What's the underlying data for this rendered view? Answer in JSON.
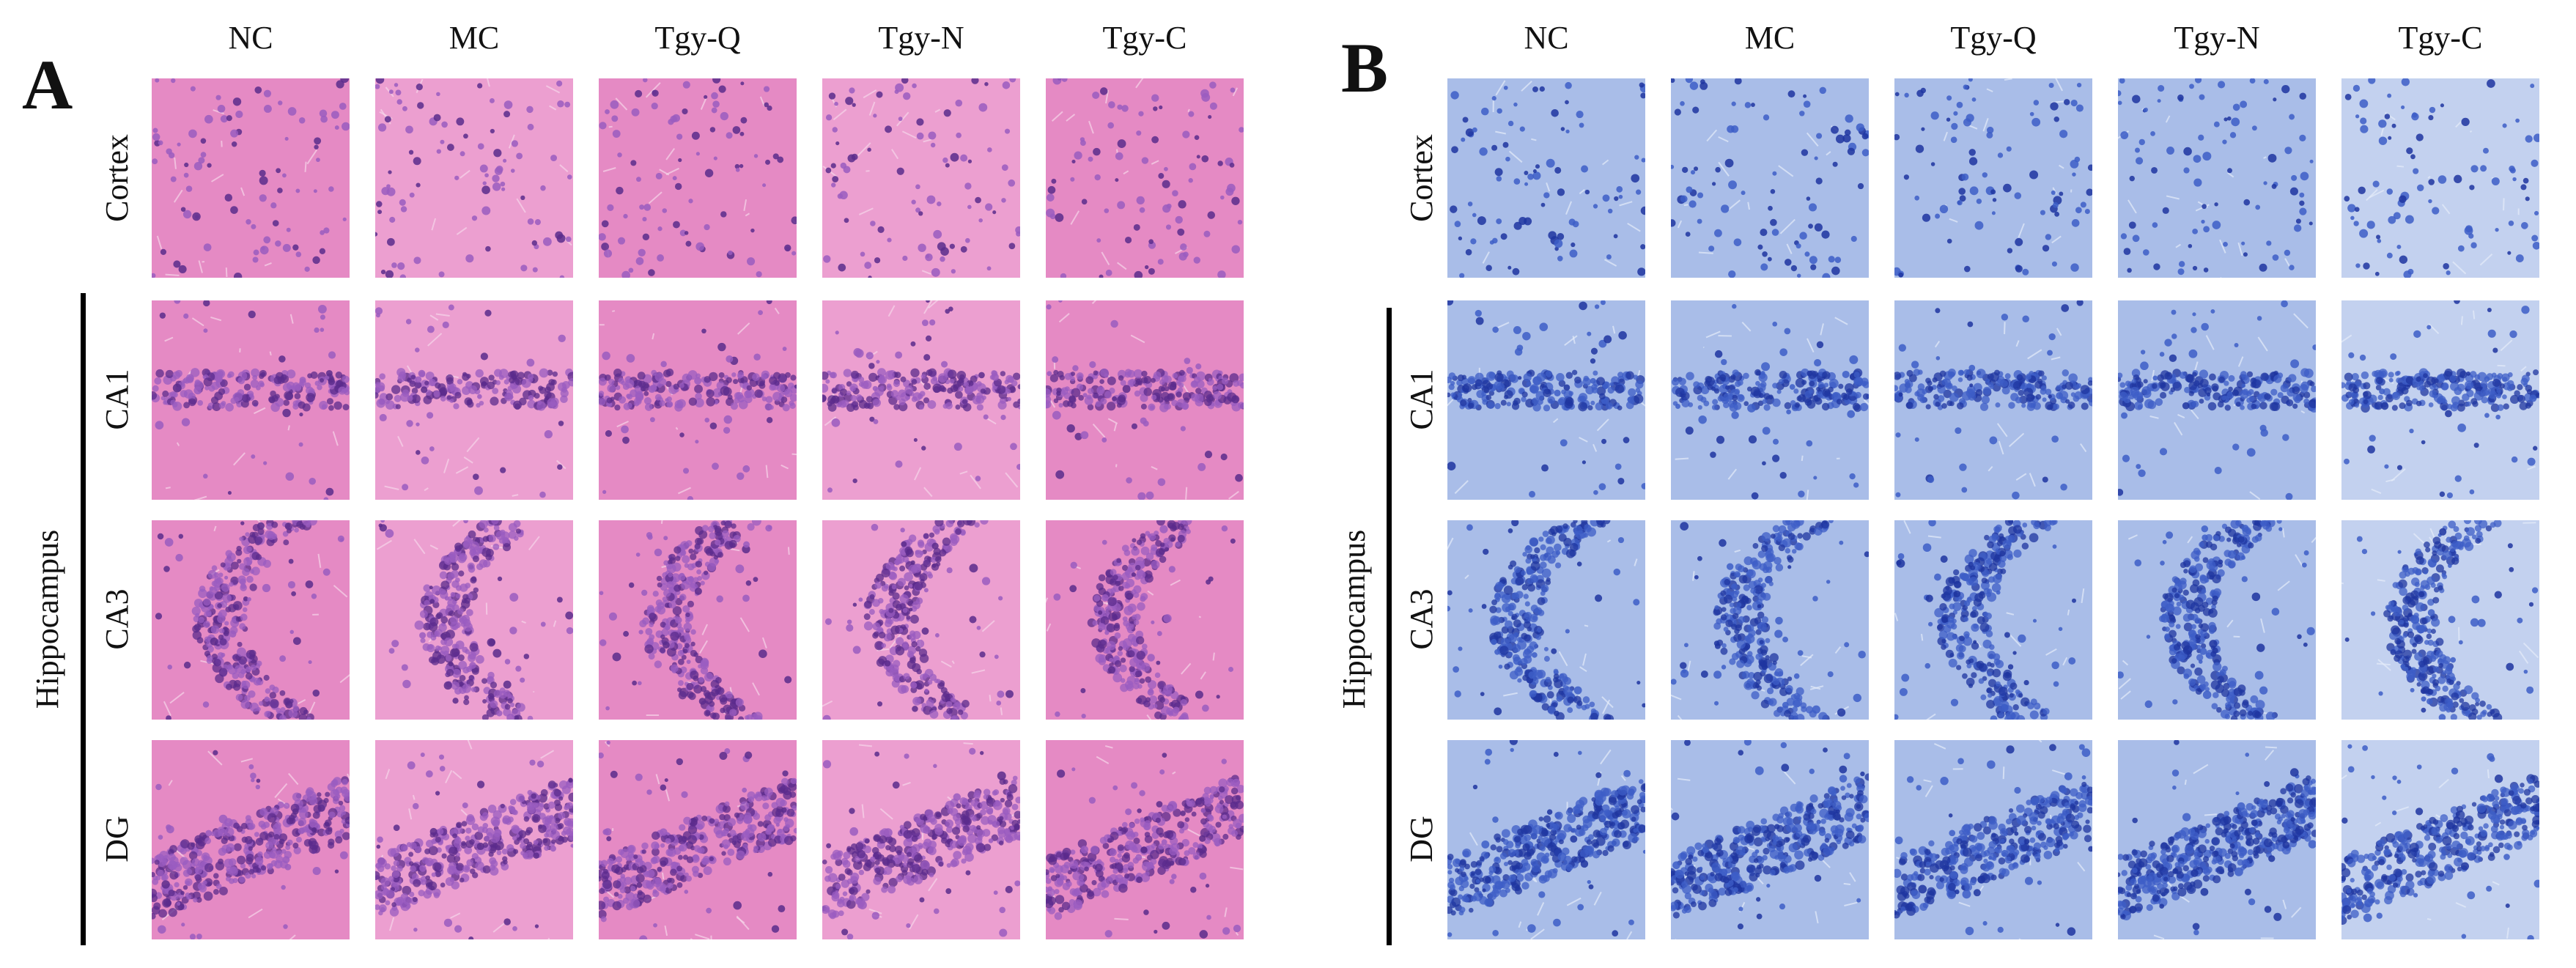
{
  "panels": [
    {
      "letter": "A",
      "stain": "he",
      "columns": [
        "NC",
        "MC",
        "Tgy-Q",
        "Tgy-N",
        "Tgy-C"
      ],
      "rows": [
        {
          "label": "Cortex",
          "morph": "cortex"
        },
        {
          "label": "CA1",
          "morph": "band"
        },
        {
          "label": "CA3",
          "morph": "arc"
        },
        {
          "label": "DG",
          "morph": "dg"
        }
      ],
      "group_label": "Hippocampus",
      "colors": {
        "bg": "#e58ac4",
        "bg_alt": "#ec9fd0",
        "cell": "#9a5cc0",
        "cell_dark": "#5b2b8c",
        "fiber": "#f7d6ea"
      }
    },
    {
      "letter": "B",
      "stain": "nissl",
      "columns": [
        "NC",
        "MC",
        "Tgy-Q",
        "Tgy-N",
        "Tgy-C"
      ],
      "rows": [
        {
          "label": "Cortex",
          "morph": "cortex"
        },
        {
          "label": "CA1",
          "morph": "band"
        },
        {
          "label": "CA3",
          "morph": "arc"
        },
        {
          "label": "DG",
          "morph": "dg"
        }
      ],
      "group_label": "Hippocampus",
      "colors": {
        "bg": "#a9bde8",
        "bg_alt": "#c3d1ef",
        "cell": "#3d5ec7",
        "cell_dark": "#1f35a0",
        "fiber": "#e6ecf9"
      }
    }
  ]
}
